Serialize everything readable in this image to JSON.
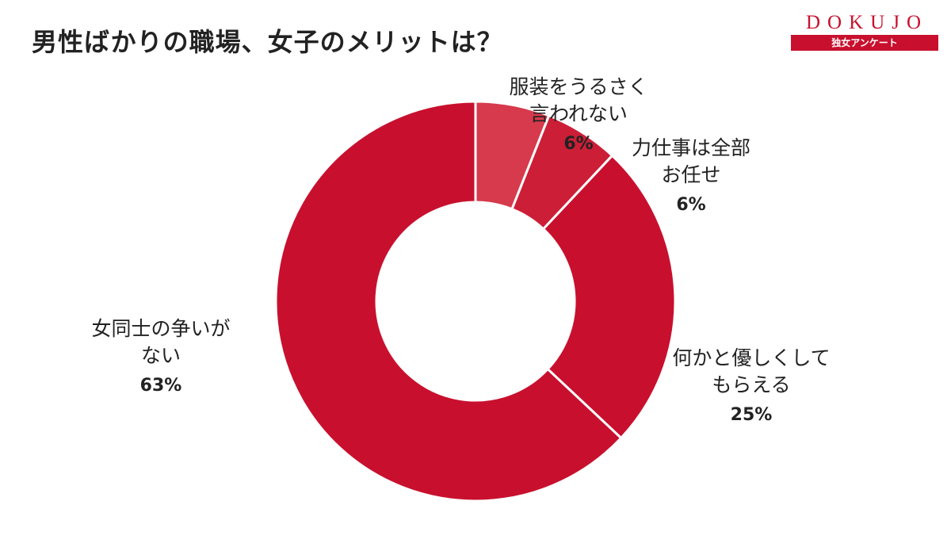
{
  "header": {
    "title": "男性ばかりの職場、女子のメリットは？"
  },
  "logo": {
    "word": "DOKUJO",
    "band": "独女アンケート"
  },
  "chart_data": {
    "type": "pie",
    "donut": true,
    "title": "男性ばかりの職場、女子のメリットは？",
    "slices": [
      {
        "label_lines": [
          "服装をうるさく",
          "言われない"
        ],
        "value": 6,
        "display": "6%",
        "color": "#d63a4c"
      },
      {
        "label_lines": [
          "力仕事は全部",
          "お任せ"
        ],
        "value": 6,
        "display": "6%",
        "color": "#cc1f37"
      },
      {
        "label_lines": [
          "何かと優しくして",
          "もらえる"
        ],
        "value": 25,
        "display": "25%",
        "color": "#c8102e"
      },
      {
        "label_lines": [
          "女同士の争いが",
          "ない"
        ],
        "value": 63,
        "display": "63%",
        "color": "#c8102e"
      }
    ]
  }
}
